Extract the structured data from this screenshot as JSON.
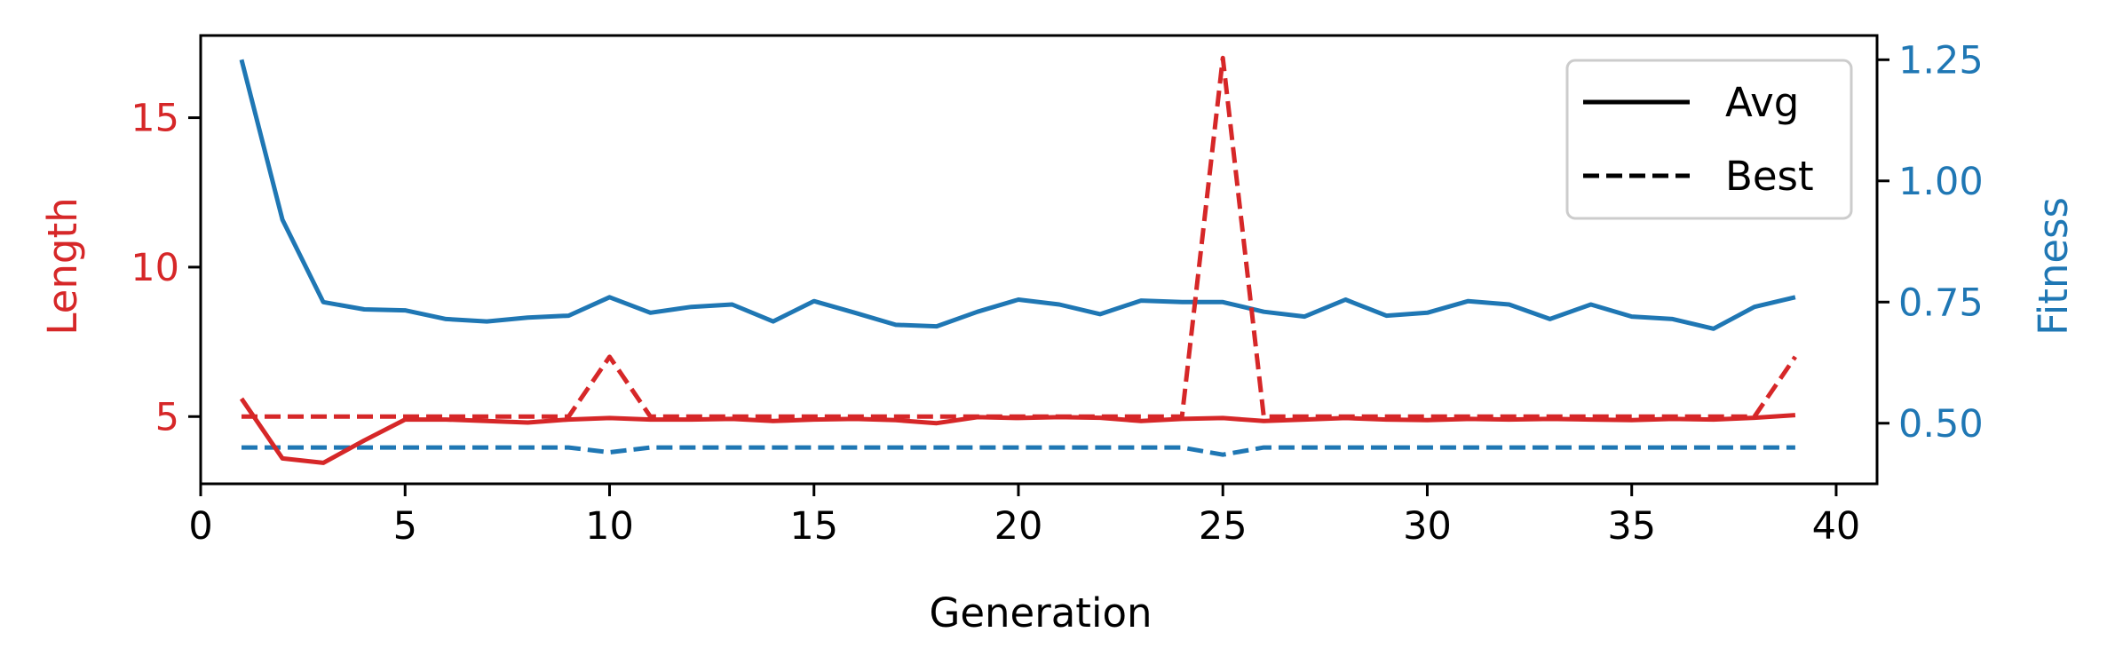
{
  "chart_data": {
    "type": "line",
    "xlabel": "Generation",
    "ylabel_left": "Length",
    "ylabel_right": "Fitness",
    "xlim": [
      0,
      41
    ],
    "ylim_left": [
      2.75,
      17.75
    ],
    "ylim_right": [
      0.375,
      1.3
    ],
    "xticks": [
      0,
      5,
      10,
      15,
      20,
      25,
      30,
      35,
      40
    ],
    "yticks_left": [
      5,
      10,
      15
    ],
    "yticks_right": [
      0.5,
      0.75,
      1.0,
      1.25
    ],
    "yticks_right_labels": [
      "0.50",
      "0.75",
      "1.00",
      "1.25"
    ],
    "colors": {
      "length": "#d62728",
      "fitness": "#1f77b4",
      "axis": "#000000"
    },
    "legend": {
      "placement": "top-right",
      "entries": [
        {
          "label": "Avg",
          "style": "solid"
        },
        {
          "label": "Best",
          "style": "dashed"
        }
      ]
    },
    "x": [
      1,
      2,
      3,
      4,
      5,
      6,
      7,
      8,
      9,
      10,
      11,
      12,
      13,
      14,
      15,
      16,
      17,
      18,
      19,
      20,
      21,
      22,
      23,
      24,
      25,
      26,
      27,
      28,
      29,
      30,
      31,
      32,
      33,
      34,
      35,
      36,
      37,
      38,
      39
    ],
    "series": [
      {
        "axis": "left",
        "metric": "length",
        "style": "solid",
        "values": [
          5.6,
          3.6,
          3.45,
          4.2,
          4.9,
          4.9,
          4.85,
          4.8,
          4.9,
          4.95,
          4.9,
          4.9,
          4.92,
          4.85,
          4.9,
          4.92,
          4.88,
          4.78,
          4.98,
          4.95,
          4.98,
          4.96,
          4.85,
          4.92,
          4.95,
          4.85,
          4.9,
          4.95,
          4.9,
          4.88,
          4.92,
          4.9,
          4.92,
          4.9,
          4.88,
          4.92,
          4.9,
          4.96,
          5.05
        ]
      },
      {
        "axis": "left",
        "metric": "length",
        "style": "dashed",
        "values": [
          5,
          5,
          5,
          5,
          5,
          5,
          5,
          5,
          5,
          7,
          5,
          5,
          5,
          5,
          5,
          5,
          5,
          5,
          5,
          5,
          5,
          5,
          5,
          5,
          17,
          5,
          5,
          5,
          5,
          5,
          5,
          5,
          5,
          5,
          5,
          5,
          5,
          5,
          7
        ]
      },
      {
        "axis": "right",
        "metric": "fitness",
        "style": "solid",
        "values": [
          1.25,
          0.92,
          0.75,
          0.735,
          0.733,
          0.715,
          0.71,
          0.718,
          0.722,
          0.76,
          0.728,
          0.74,
          0.745,
          0.71,
          0.752,
          0.728,
          0.703,
          0.7,
          0.73,
          0.755,
          0.745,
          0.725,
          0.753,
          0.75,
          0.75,
          0.73,
          0.72,
          0.755,
          0.722,
          0.728,
          0.752,
          0.745,
          0.715,
          0.745,
          0.72,
          0.715,
          0.695,
          0.74,
          0.76
        ]
      },
      {
        "axis": "right",
        "metric": "fitness",
        "style": "dashed",
        "values": [
          0.45,
          0.45,
          0.45,
          0.45,
          0.45,
          0.45,
          0.45,
          0.45,
          0.45,
          0.44,
          0.45,
          0.45,
          0.45,
          0.45,
          0.45,
          0.45,
          0.45,
          0.45,
          0.45,
          0.45,
          0.45,
          0.45,
          0.45,
          0.45,
          0.435,
          0.45,
          0.45,
          0.45,
          0.45,
          0.45,
          0.45,
          0.45,
          0.45,
          0.45,
          0.45,
          0.45,
          0.45,
          0.45,
          0.45
        ]
      }
    ]
  }
}
